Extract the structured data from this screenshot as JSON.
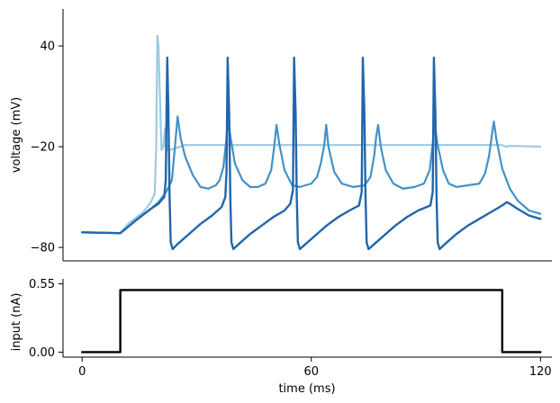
{
  "chart_data": [
    {
      "type": "line",
      "panel": "top",
      "title": "",
      "xlabel": "",
      "ylabel": "voltage (mV)",
      "xlim": [
        -5,
        123
      ],
      "ylim": [
        -88,
        62
      ],
      "yticks": [
        40,
        -20,
        -80
      ],
      "ytick_labels": [
        "40",
        "−20",
        "−80"
      ],
      "grid": false,
      "legend": "none",
      "series": [
        {
          "color": "#9ecae1",
          "stroke_width": 2.2,
          "points": [
            [
              0,
              -71
            ],
            [
              10,
              -71.5
            ],
            [
              12,
              -66
            ],
            [
              16,
              -59
            ],
            [
              18,
              -53
            ],
            [
              19,
              -48
            ],
            [
              19.4,
              -20
            ],
            [
              19.7,
              46
            ],
            [
              20.0,
              40
            ],
            [
              20.5,
              0
            ],
            [
              20.8,
              -22
            ],
            [
              21.3,
              -20
            ],
            [
              21.7,
              -9
            ],
            [
              22.3,
              -22
            ],
            [
              23.0,
              -22
            ],
            [
              27,
              -19
            ],
            [
              110,
              -19
            ],
            [
              111,
              -20
            ],
            [
              112,
              -19.5
            ],
            [
              120,
              -20
            ]
          ]
        },
        {
          "color": "#4292c6",
          "stroke_width": 2.2,
          "points": [
            [
              0,
              -71
            ],
            [
              10,
              -71.5
            ],
            [
              14,
              -64
            ],
            [
              18,
              -57
            ],
            [
              20,
              -53
            ],
            [
              22,
              -47
            ],
            [
              23.5,
              -40
            ],
            [
              24.3,
              -20
            ],
            [
              25,
              -2
            ],
            [
              25.8,
              -15
            ],
            [
              27,
              -26
            ],
            [
              29,
              -37
            ],
            [
              31,
              -44
            ],
            [
              33,
              -45
            ],
            [
              35,
              -43
            ],
            [
              36,
              -40
            ],
            [
              37,
              -32
            ],
            [
              37.7,
              -17
            ],
            [
              38.2,
              -4
            ],
            [
              38.9,
              -15
            ],
            [
              40,
              -30
            ],
            [
              42,
              -40
            ],
            [
              44,
              -44
            ],
            [
              46,
              -44
            ],
            [
              48,
              -42
            ],
            [
              49.5,
              -34
            ],
            [
              50.3,
              -20
            ],
            [
              50.9,
              -7
            ],
            [
              51.6,
              -18
            ],
            [
              53,
              -34
            ],
            [
              55,
              -43
            ],
            [
              57,
              -44
            ],
            [
              60,
              -42
            ],
            [
              61.5,
              -38
            ],
            [
              62.5,
              -30
            ],
            [
              63.4,
              -19
            ],
            [
              63.9,
              -7
            ],
            [
              64.5,
              -20
            ],
            [
              66,
              -35
            ],
            [
              68,
              -42
            ],
            [
              71,
              -44
            ],
            [
              74,
              -43
            ],
            [
              75.5,
              -38
            ],
            [
              76.5,
              -25
            ],
            [
              77,
              -14
            ],
            [
              77.5,
              -7
            ],
            [
              78.2,
              -20
            ],
            [
              79.5,
              -34
            ],
            [
              81.5,
              -42
            ],
            [
              84,
              -45
            ],
            [
              87,
              -44
            ],
            [
              89.5,
              -42
            ],
            [
              91,
              -34
            ],
            [
              91.8,
              -18
            ],
            [
              92.3,
              -6
            ],
            [
              93,
              -18
            ],
            [
              94.5,
              -34
            ],
            [
              96,
              -42
            ],
            [
              98,
              -44
            ],
            [
              101,
              -43
            ],
            [
              104,
              -42
            ],
            [
              105.5,
              -36
            ],
            [
              106.5,
              -26
            ],
            [
              107.3,
              -13
            ],
            [
              107.8,
              -5
            ],
            [
              108.5,
              -16
            ],
            [
              110,
              -33
            ],
            [
              112,
              -45
            ],
            [
              114,
              -52
            ],
            [
              117,
              -58
            ],
            [
              120,
              -60
            ]
          ]
        },
        {
          "color": "#2166ac",
          "stroke_width": 2.4,
          "points": [
            [
              0,
              -71
            ],
            [
              10,
              -71.5
            ],
            [
              14,
              -64
            ],
            [
              18,
              -57
            ],
            [
              20,
              -54
            ],
            [
              21.5,
              -50
            ],
            [
              21.9,
              -40
            ],
            [
              22.1,
              0
            ],
            [
              22.3,
              33
            ],
            [
              22.6,
              0
            ],
            [
              22.9,
              -50
            ],
            [
              23.2,
              -77
            ],
            [
              23.7,
              -81
            ],
            [
              25,
              -78
            ],
            [
              28,
              -72
            ],
            [
              31,
              -66
            ],
            [
              34,
              -61
            ],
            [
              36.5,
              -56
            ],
            [
              37.5,
              -50
            ],
            [
              37.8,
              -35
            ],
            [
              38.1,
              33
            ],
            [
              38.5,
              0
            ],
            [
              38.8,
              -50
            ],
            [
              39.1,
              -77
            ],
            [
              39.6,
              -81
            ],
            [
              41,
              -78
            ],
            [
              44,
              -72
            ],
            [
              47,
              -67
            ],
            [
              50,
              -62
            ],
            [
              53,
              -58
            ],
            [
              54.5,
              -54
            ],
            [
              55.2,
              -46
            ],
            [
              55.5,
              33
            ],
            [
              55.9,
              0
            ],
            [
              56.2,
              -50
            ],
            [
              56.5,
              -77
            ],
            [
              57,
              -81
            ],
            [
              58.5,
              -78
            ],
            [
              61,
              -73
            ],
            [
              64,
              -67
            ],
            [
              67,
              -62
            ],
            [
              70,
              -58
            ],
            [
              72.5,
              -55
            ],
            [
              73.2,
              -47
            ],
            [
              73.5,
              33
            ],
            [
              73.9,
              0
            ],
            [
              74.2,
              -50
            ],
            [
              74.5,
              -77
            ],
            [
              75,
              -81
            ],
            [
              76.5,
              -78
            ],
            [
              79,
              -73
            ],
            [
              82,
              -67
            ],
            [
              85,
              -62
            ],
            [
              88,
              -58
            ],
            [
              91.2,
              -55
            ],
            [
              91.8,
              -47
            ],
            [
              92.1,
              33
            ],
            [
              92.5,
              0
            ],
            [
              92.8,
              -50
            ],
            [
              93.1,
              -77
            ],
            [
              93.6,
              -81
            ],
            [
              95,
              -78
            ],
            [
              98,
              -72
            ],
            [
              101,
              -67
            ],
            [
              104,
              -63
            ],
            [
              107,
              -59
            ],
            [
              110,
              -55
            ],
            [
              111.2,
              -53
            ],
            [
              112,
              -54
            ],
            [
              114,
              -57
            ],
            [
              117,
              -61
            ],
            [
              120,
              -63
            ]
          ]
        }
      ]
    },
    {
      "type": "line",
      "panel": "bottom",
      "title": "",
      "xlabel": "time (ms)",
      "ylabel": "input (nA)",
      "xlim": [
        -5,
        123
      ],
      "ylim": [
        -0.04,
        0.59
      ],
      "xticks": [
        0,
        60,
        120
      ],
      "xtick_labels": [
        "0",
        "60",
        "120"
      ],
      "yticks": [
        0.55,
        0.0
      ],
      "ytick_labels": [
        "0.55",
        "0.00"
      ],
      "grid": false,
      "legend": "none",
      "series": [
        {
          "color": "#000000",
          "stroke_width": 2.4,
          "points": [
            [
              0,
              0
            ],
            [
              10,
              0
            ],
            [
              10,
              0.5
            ],
            [
              110,
              0.5
            ],
            [
              110,
              0
            ],
            [
              120,
              0
            ]
          ]
        }
      ]
    }
  ]
}
